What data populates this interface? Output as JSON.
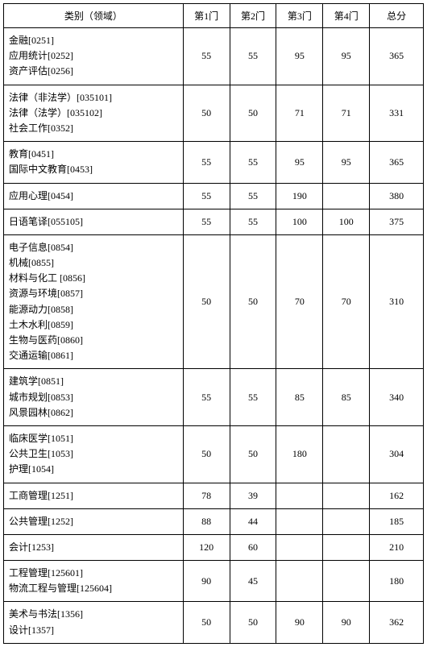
{
  "table": {
    "headers": [
      "类别（领域）",
      "第1门",
      "第2门",
      "第3门",
      "第4门",
      "总分"
    ],
    "rows": [
      {
        "category": [
          "金融[0251]",
          "应用统计[0252]",
          "资产评估[0256]"
        ],
        "s1": "55",
        "s2": "55",
        "s3": "95",
        "s4": "95",
        "total": "365"
      },
      {
        "category": [
          "法律（非法学）[035101]",
          "法律（法学）[035102]",
          "社会工作[0352]"
        ],
        "s1": "50",
        "s2": "50",
        "s3": "71",
        "s4": "71",
        "total": "331"
      },
      {
        "category": [
          "教育[0451]",
          "国际中文教育[0453]"
        ],
        "s1": "55",
        "s2": "55",
        "s3": "95",
        "s4": "95",
        "total": "365"
      },
      {
        "category": [
          "应用心理[0454]"
        ],
        "s1": "55",
        "s2": "55",
        "s3": "190",
        "s4": "",
        "total": "380"
      },
      {
        "category": [
          "日语笔译[055105]"
        ],
        "s1": "55",
        "s2": "55",
        "s3": "100",
        "s4": "100",
        "total": "375"
      },
      {
        "category": [
          "电子信息[0854]",
          "机械[0855]",
          "材料与化工 [0856]",
          "资源与环境[0857]",
          "能源动力[0858]",
          "土木水利[0859]",
          "生物与医药[0860]",
          "交通运输[0861]"
        ],
        "s1": "50",
        "s2": "50",
        "s3": "70",
        "s4": "70",
        "total": "310"
      },
      {
        "category": [
          "建筑学[0851]",
          "城市规划[0853]",
          "风景园林[0862]"
        ],
        "s1": "55",
        "s2": "55",
        "s3": "85",
        "s4": "85",
        "total": "340"
      },
      {
        "category": [
          "临床医学[1051]",
          "公共卫生[1053]",
          "护理[1054]"
        ],
        "s1": "50",
        "s2": "50",
        "s3": "180",
        "s4": "",
        "total": "304"
      },
      {
        "category": [
          "工商管理[1251]"
        ],
        "s1": "78",
        "s2": "39",
        "s3": "",
        "s4": "",
        "total": "162"
      },
      {
        "category": [
          "公共管理[1252]"
        ],
        "s1": "88",
        "s2": "44",
        "s3": "",
        "s4": "",
        "total": "185"
      },
      {
        "category": [
          "会计[1253]"
        ],
        "s1": "120",
        "s2": "60",
        "s3": "",
        "s4": "",
        "total": "210"
      },
      {
        "category": [
          "工程管理[125601]",
          "物流工程与管理[125604]"
        ],
        "s1": "90",
        "s2": "45",
        "s3": "",
        "s4": "",
        "total": "180"
      },
      {
        "category": [
          "美术与书法[1356]",
          "设计[1357]"
        ],
        "s1": "50",
        "s2": "50",
        "s3": "90",
        "s4": "90",
        "total": "362"
      }
    ]
  }
}
